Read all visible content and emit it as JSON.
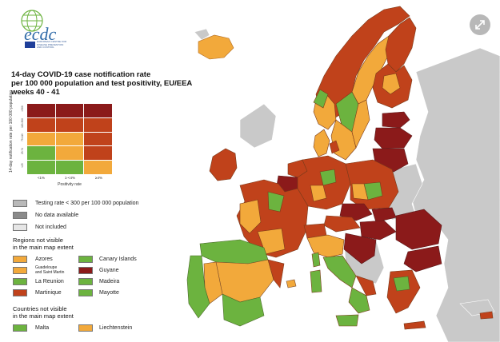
{
  "logo": {
    "text": "ecdc",
    "subtitle": "EUROPEAN CENTRE FOR DISEASE PREVENTION AND CONTROL"
  },
  "title": {
    "line1": "14-day COVID-19 case notification rate",
    "line2": "per 100 000 population and test positivity, EU/EEA",
    "line3": "weeks 40 - 41"
  },
  "matrix": {
    "y_label": "14-day notification rate per 100 000 population",
    "y_ticks": [
      ">300",
      "120-300",
      "75-119",
      "25-74",
      "<25"
    ],
    "x_label": "Positivity rate",
    "x_ticks": [
      "<1%",
      "1-<4%",
      "≥4%"
    ],
    "colors": [
      [
        "#8b1a1a",
        "#8b1a1a",
        "#8b1a1a"
      ],
      [
        "#c0421b",
        "#c0421b",
        "#c0421b"
      ],
      [
        "#f2a93b",
        "#f2a93b",
        "#c0421b"
      ],
      [
        "#6cb33f",
        "#f2a93b",
        "#c0421b"
      ],
      [
        "#6cb33f",
        "#6cb33f",
        "#f2a93b"
      ]
    ]
  },
  "legend": {
    "gray": [
      {
        "label": "Testing rate < 300 per 100 000 population",
        "color": "#b9b9b9"
      },
      {
        "label": "No data available",
        "color": "#8a8a8a"
      },
      {
        "label": "Not included",
        "color": "#e6e6e6"
      }
    ],
    "regions_heading_1": "Regions not visible",
    "regions_heading_2": "in the main map extent",
    "regions_left": [
      {
        "label": "Azores",
        "color": "#f2a93b"
      },
      {
        "label": "Guadeloupe",
        "label2": "and Saint Martin",
        "color": "#f2a93b"
      },
      {
        "label": "La Reunion",
        "color": "#6cb33f"
      },
      {
        "label": "Martinique",
        "color": "#c0421b"
      }
    ],
    "regions_right": [
      {
        "label": "Canary Islands",
        "color": "#6cb33f"
      },
      {
        "label": "Guyane",
        "color": "#8b1a1a"
      },
      {
        "label": "Madeira",
        "color": "#6cb33f"
      },
      {
        "label": "Mayotte",
        "color": "#6cb33f"
      }
    ],
    "countries_heading_1": "Countries not visible",
    "countries_heading_2": "in the main map extent",
    "countries": [
      {
        "label": "Malta",
        "color": "#6cb33f"
      },
      {
        "label": "Liechtenstein",
        "color": "#f2a93b"
      }
    ]
  },
  "colors": {
    "dark_red": "#8b1a1a",
    "red": "#c0421b",
    "orange": "#f2a93b",
    "green": "#6cb33f",
    "grey": "#c9c9c9",
    "border": "#7a4a2a"
  }
}
